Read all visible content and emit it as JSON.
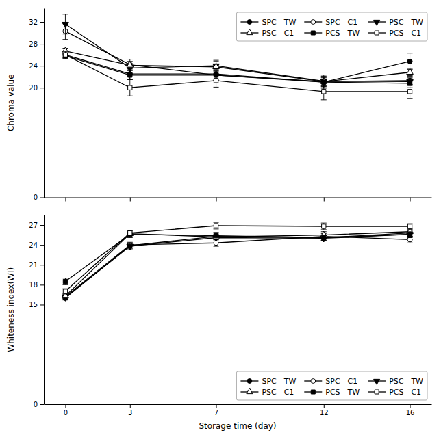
{
  "chart_data": [
    {
      "type": "line",
      "ylabel": "Chroma value",
      "x": [
        0,
        3,
        7,
        12,
        16
      ],
      "xlim": [
        -1,
        17
      ],
      "xticks": [
        0,
        3,
        7,
        12,
        16
      ],
      "ylim": [
        0,
        34.5
      ],
      "yticks": [
        0,
        20,
        24,
        28,
        32
      ],
      "grid": false,
      "legend": "upper right",
      "tick_labels": "y",
      "series": [
        {
          "name": "SPC - TW",
          "color": "black",
          "marker": "circle",
          "values": [
            26.0,
            22.5,
            22.5,
            21.0,
            24.8
          ],
          "errors": [
            0.5,
            1.0,
            1.2,
            0.8,
            1.5
          ]
        },
        {
          "name": "SPC - C1",
          "color": "black",
          "marker": "circle-open",
          "values": [
            30.3,
            24.2,
            22.3,
            21.1,
            21.3
          ],
          "errors": [
            1.5,
            1.0,
            0.8,
            0.8,
            0.8
          ]
        },
        {
          "name": "PSC - TW",
          "color": "black",
          "marker": "triangle-down",
          "values": [
            31.6,
            23.6,
            24.0,
            21.2,
            21.1
          ],
          "errors": [
            1.8,
            0.8,
            1.0,
            0.9,
            0.7
          ]
        },
        {
          "name": "PSC - C1",
          "color": "black",
          "marker": "triangle-up-open",
          "values": [
            26.7,
            24.1,
            23.8,
            21.1,
            22.8
          ],
          "errors": [
            0.5,
            0.7,
            1.0,
            1.2,
            0.6
          ]
        },
        {
          "name": "PCS - TW",
          "color": "black",
          "marker": "square",
          "values": [
            25.8,
            22.3,
            22.3,
            21.0,
            20.8
          ],
          "errors": [
            0.5,
            0.8,
            1.0,
            1.0,
            0.8
          ]
        },
        {
          "name": "PCS - C1",
          "color": "black",
          "marker": "square-open",
          "values": [
            26.0,
            20.0,
            21.3,
            19.3,
            19.3
          ],
          "errors": [
            0.6,
            1.5,
            1.2,
            1.5,
            1.3
          ]
        }
      ]
    },
    {
      "type": "line",
      "ylabel": "Whiteness index(WI)",
      "xlabel": "Storage time (day)",
      "x": [
        0,
        3,
        7,
        12,
        16
      ],
      "xlim": [
        -1,
        17
      ],
      "xticks": [
        0,
        3,
        7,
        12,
        16
      ],
      "ylim": [
        0,
        28.5
      ],
      "yticks": [
        0,
        15,
        18,
        21,
        24,
        27
      ],
      "grid": false,
      "legend": "lower right",
      "series": [
        {
          "name": "SPC - TW",
          "color": "black",
          "marker": "circle",
          "values": [
            16.0,
            23.9,
            25.3,
            25.1,
            25.8
          ],
          "errors": [
            0.3,
            0.4,
            0.5,
            0.4,
            0.5
          ]
        },
        {
          "name": "SPC - C1",
          "color": "black",
          "marker": "circle-open",
          "values": [
            16.2,
            24.0,
            24.3,
            25.3,
            24.8
          ],
          "errors": [
            0.3,
            0.4,
            0.5,
            0.4,
            0.5
          ]
        },
        {
          "name": "PSC - TW",
          "color": "black",
          "marker": "triangle-down",
          "values": [
            16.1,
            23.8,
            25.1,
            25.0,
            25.6
          ],
          "errors": [
            0.3,
            0.4,
            0.5,
            0.4,
            0.5
          ]
        },
        {
          "name": "PSC - C1",
          "color": "black",
          "marker": "triangle-up-open",
          "values": [
            16.3,
            25.7,
            25.2,
            25.5,
            26.0
          ],
          "errors": [
            0.3,
            0.5,
            0.6,
            0.5,
            0.5
          ]
        },
        {
          "name": "PCS - TW",
          "color": "black",
          "marker": "square",
          "values": [
            18.5,
            25.6,
            25.4,
            25.1,
            25.6
          ],
          "errors": [
            0.5,
            0.5,
            0.5,
            0.4,
            0.4
          ]
        },
        {
          "name": "PCS - C1",
          "color": "black",
          "marker": "square-open",
          "values": [
            17.0,
            25.8,
            26.9,
            26.8,
            26.8
          ],
          "errors": [
            0.4,
            0.4,
            0.5,
            0.5,
            0.4
          ]
        }
      ]
    }
  ]
}
